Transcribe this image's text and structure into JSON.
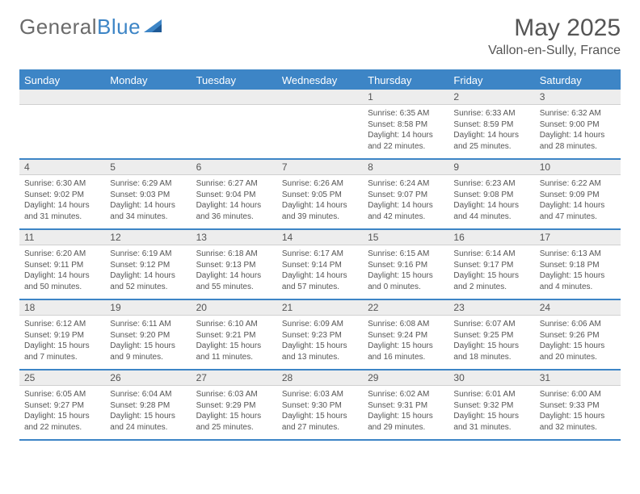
{
  "brand": {
    "part1": "General",
    "part2": "Blue"
  },
  "title": "May 2025",
  "subtitle": "Vallon-en-Sully, France",
  "colors": {
    "accent": "#3d85c6",
    "header_bg": "#3d85c6",
    "numrow_bg": "#ededed",
    "text": "#555555",
    "page_bg": "#ffffff",
    "border": "#3d85c6"
  },
  "typography": {
    "title_fontsize": 30,
    "subtitle_fontsize": 16,
    "dayhead_fontsize": 13,
    "daynum_fontsize": 12,
    "cell_fontsize": 10,
    "family": "Arial"
  },
  "day_headers": [
    "Sunday",
    "Monday",
    "Tuesday",
    "Wednesday",
    "Thursday",
    "Friday",
    "Saturday"
  ],
  "weeks": [
    {
      "nums": [
        "",
        "",
        "",
        "",
        "1",
        "2",
        "3"
      ],
      "cells": [
        null,
        null,
        null,
        null,
        {
          "sunrise": "Sunrise: 6:35 AM",
          "sunset": "Sunset: 8:58 PM",
          "daylight1": "Daylight: 14 hours",
          "daylight2": "and 22 minutes."
        },
        {
          "sunrise": "Sunrise: 6:33 AM",
          "sunset": "Sunset: 8:59 PM",
          "daylight1": "Daylight: 14 hours",
          "daylight2": "and 25 minutes."
        },
        {
          "sunrise": "Sunrise: 6:32 AM",
          "sunset": "Sunset: 9:00 PM",
          "daylight1": "Daylight: 14 hours",
          "daylight2": "and 28 minutes."
        }
      ]
    },
    {
      "nums": [
        "4",
        "5",
        "6",
        "7",
        "8",
        "9",
        "10"
      ],
      "cells": [
        {
          "sunrise": "Sunrise: 6:30 AM",
          "sunset": "Sunset: 9:02 PM",
          "daylight1": "Daylight: 14 hours",
          "daylight2": "and 31 minutes."
        },
        {
          "sunrise": "Sunrise: 6:29 AM",
          "sunset": "Sunset: 9:03 PM",
          "daylight1": "Daylight: 14 hours",
          "daylight2": "and 34 minutes."
        },
        {
          "sunrise": "Sunrise: 6:27 AM",
          "sunset": "Sunset: 9:04 PM",
          "daylight1": "Daylight: 14 hours",
          "daylight2": "and 36 minutes."
        },
        {
          "sunrise": "Sunrise: 6:26 AM",
          "sunset": "Sunset: 9:05 PM",
          "daylight1": "Daylight: 14 hours",
          "daylight2": "and 39 minutes."
        },
        {
          "sunrise": "Sunrise: 6:24 AM",
          "sunset": "Sunset: 9:07 PM",
          "daylight1": "Daylight: 14 hours",
          "daylight2": "and 42 minutes."
        },
        {
          "sunrise": "Sunrise: 6:23 AM",
          "sunset": "Sunset: 9:08 PM",
          "daylight1": "Daylight: 14 hours",
          "daylight2": "and 44 minutes."
        },
        {
          "sunrise": "Sunrise: 6:22 AM",
          "sunset": "Sunset: 9:09 PM",
          "daylight1": "Daylight: 14 hours",
          "daylight2": "and 47 minutes."
        }
      ]
    },
    {
      "nums": [
        "11",
        "12",
        "13",
        "14",
        "15",
        "16",
        "17"
      ],
      "cells": [
        {
          "sunrise": "Sunrise: 6:20 AM",
          "sunset": "Sunset: 9:11 PM",
          "daylight1": "Daylight: 14 hours",
          "daylight2": "and 50 minutes."
        },
        {
          "sunrise": "Sunrise: 6:19 AM",
          "sunset": "Sunset: 9:12 PM",
          "daylight1": "Daylight: 14 hours",
          "daylight2": "and 52 minutes."
        },
        {
          "sunrise": "Sunrise: 6:18 AM",
          "sunset": "Sunset: 9:13 PM",
          "daylight1": "Daylight: 14 hours",
          "daylight2": "and 55 minutes."
        },
        {
          "sunrise": "Sunrise: 6:17 AM",
          "sunset": "Sunset: 9:14 PM",
          "daylight1": "Daylight: 14 hours",
          "daylight2": "and 57 minutes."
        },
        {
          "sunrise": "Sunrise: 6:15 AM",
          "sunset": "Sunset: 9:16 PM",
          "daylight1": "Daylight: 15 hours",
          "daylight2": "and 0 minutes."
        },
        {
          "sunrise": "Sunrise: 6:14 AM",
          "sunset": "Sunset: 9:17 PM",
          "daylight1": "Daylight: 15 hours",
          "daylight2": "and 2 minutes."
        },
        {
          "sunrise": "Sunrise: 6:13 AM",
          "sunset": "Sunset: 9:18 PM",
          "daylight1": "Daylight: 15 hours",
          "daylight2": "and 4 minutes."
        }
      ]
    },
    {
      "nums": [
        "18",
        "19",
        "20",
        "21",
        "22",
        "23",
        "24"
      ],
      "cells": [
        {
          "sunrise": "Sunrise: 6:12 AM",
          "sunset": "Sunset: 9:19 PM",
          "daylight1": "Daylight: 15 hours",
          "daylight2": "and 7 minutes."
        },
        {
          "sunrise": "Sunrise: 6:11 AM",
          "sunset": "Sunset: 9:20 PM",
          "daylight1": "Daylight: 15 hours",
          "daylight2": "and 9 minutes."
        },
        {
          "sunrise": "Sunrise: 6:10 AM",
          "sunset": "Sunset: 9:21 PM",
          "daylight1": "Daylight: 15 hours",
          "daylight2": "and 11 minutes."
        },
        {
          "sunrise": "Sunrise: 6:09 AM",
          "sunset": "Sunset: 9:23 PM",
          "daylight1": "Daylight: 15 hours",
          "daylight2": "and 13 minutes."
        },
        {
          "sunrise": "Sunrise: 6:08 AM",
          "sunset": "Sunset: 9:24 PM",
          "daylight1": "Daylight: 15 hours",
          "daylight2": "and 16 minutes."
        },
        {
          "sunrise": "Sunrise: 6:07 AM",
          "sunset": "Sunset: 9:25 PM",
          "daylight1": "Daylight: 15 hours",
          "daylight2": "and 18 minutes."
        },
        {
          "sunrise": "Sunrise: 6:06 AM",
          "sunset": "Sunset: 9:26 PM",
          "daylight1": "Daylight: 15 hours",
          "daylight2": "and 20 minutes."
        }
      ]
    },
    {
      "nums": [
        "25",
        "26",
        "27",
        "28",
        "29",
        "30",
        "31"
      ],
      "cells": [
        {
          "sunrise": "Sunrise: 6:05 AM",
          "sunset": "Sunset: 9:27 PM",
          "daylight1": "Daylight: 15 hours",
          "daylight2": "and 22 minutes."
        },
        {
          "sunrise": "Sunrise: 6:04 AM",
          "sunset": "Sunset: 9:28 PM",
          "daylight1": "Daylight: 15 hours",
          "daylight2": "and 24 minutes."
        },
        {
          "sunrise": "Sunrise: 6:03 AM",
          "sunset": "Sunset: 9:29 PM",
          "daylight1": "Daylight: 15 hours",
          "daylight2": "and 25 minutes."
        },
        {
          "sunrise": "Sunrise: 6:03 AM",
          "sunset": "Sunset: 9:30 PM",
          "daylight1": "Daylight: 15 hours",
          "daylight2": "and 27 minutes."
        },
        {
          "sunrise": "Sunrise: 6:02 AM",
          "sunset": "Sunset: 9:31 PM",
          "daylight1": "Daylight: 15 hours",
          "daylight2": "and 29 minutes."
        },
        {
          "sunrise": "Sunrise: 6:01 AM",
          "sunset": "Sunset: 9:32 PM",
          "daylight1": "Daylight: 15 hours",
          "daylight2": "and 31 minutes."
        },
        {
          "sunrise": "Sunrise: 6:00 AM",
          "sunset": "Sunset: 9:33 PM",
          "daylight1": "Daylight: 15 hours",
          "daylight2": "and 32 minutes."
        }
      ]
    }
  ]
}
